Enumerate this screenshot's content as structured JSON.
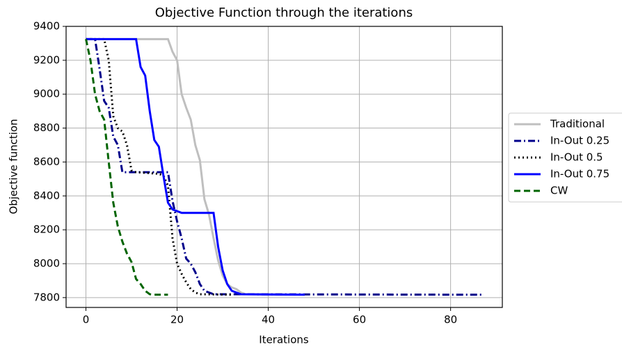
{
  "chart_data": {
    "type": "line",
    "title": "Objective Function through the iterations",
    "xlabel": "Iterations",
    "ylabel": "Objective function",
    "xlim": [
      -4.35,
      91.35
    ],
    "ylim": [
      7742,
      9400
    ],
    "xticks": [
      0,
      20,
      40,
      60,
      80
    ],
    "yticks": [
      7800,
      8000,
      8200,
      8400,
      8600,
      8800,
      9000,
      9200,
      9400
    ],
    "grid": true,
    "legend": "outside right",
    "series": [
      {
        "name": "Traditional",
        "color": "#bfbfbf",
        "linestyle": "solid",
        "x": [
          0,
          18,
          19,
          20,
          21,
          22,
          23,
          24,
          25,
          26,
          27,
          28,
          29,
          30,
          31,
          32,
          33,
          34,
          35,
          48
        ],
        "values": [
          9325,
          9325,
          9250,
          9200,
          9000,
          8920,
          8850,
          8700,
          8610,
          8380,
          8290,
          8150,
          8020,
          7930,
          7880,
          7860,
          7850,
          7830,
          7820,
          7817
        ]
      },
      {
        "name": "In-Out 0.25",
        "color": "#00008b",
        "linestyle": "dashdot",
        "x": [
          0,
          2,
          3,
          4,
          5,
          6,
          7,
          8,
          18,
          19,
          20,
          21,
          22,
          23,
          24,
          25,
          26,
          27,
          28,
          87
        ],
        "values": [
          9325,
          9325,
          9150,
          8960,
          8920,
          8750,
          8700,
          8540,
          8540,
          8370,
          8250,
          8150,
          8030,
          8000,
          7950,
          7880,
          7840,
          7830,
          7820,
          7817
        ]
      },
      {
        "name": "In-Out 0.5",
        "color": "#000000",
        "linestyle": "dotted",
        "x": [
          0,
          4,
          5,
          6,
          7,
          8,
          9,
          10,
          11,
          16,
          17,
          18,
          19,
          20,
          21,
          22,
          23,
          24,
          25,
          32
        ],
        "values": [
          9325,
          9325,
          9200,
          8870,
          8800,
          8780,
          8700,
          8550,
          8540,
          8530,
          8520,
          8460,
          8150,
          8000,
          7940,
          7890,
          7850,
          7830,
          7820,
          7817
        ]
      },
      {
        "name": "In-Out 0.75",
        "color": "#0000ff",
        "linestyle": "solid",
        "x": [
          0,
          11,
          12,
          13,
          14,
          15,
          16,
          17,
          18,
          19,
          20,
          21,
          28,
          29,
          30,
          31,
          32,
          33,
          34,
          48
        ],
        "values": [
          9325,
          9325,
          9160,
          9110,
          8900,
          8730,
          8690,
          8520,
          8360,
          8320,
          8310,
          8300,
          8300,
          8100,
          7960,
          7880,
          7840,
          7830,
          7820,
          7817
        ]
      },
      {
        "name": "CW",
        "color": "#006400",
        "linestyle": "dashed",
        "x": [
          0,
          1,
          2,
          3,
          4,
          5,
          6,
          7,
          8,
          9,
          10,
          11,
          12,
          13,
          14,
          15,
          18
        ],
        "values": [
          9325,
          9200,
          9000,
          8900,
          8850,
          8600,
          8360,
          8220,
          8130,
          8060,
          8010,
          7910,
          7880,
          7840,
          7820,
          7817,
          7817
        ]
      }
    ]
  }
}
